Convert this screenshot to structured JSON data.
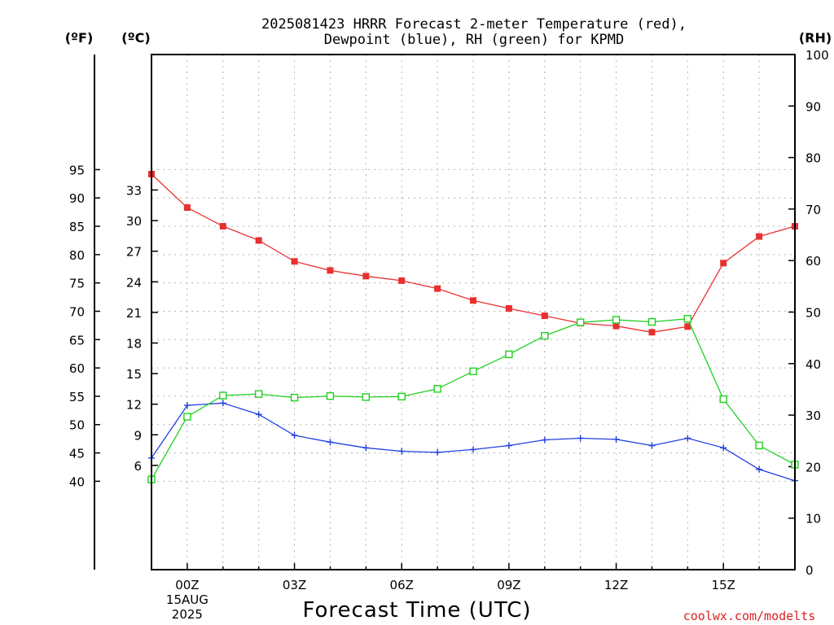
{
  "chart_data": {
    "type": "line",
    "title_line1": "2025081423 HRRR Forecast 2-meter Temperature (red),",
    "title_line2": "Dewpoint (blue), RH (green) for KPMD",
    "xlabel": "Forecast Time (UTC)",
    "credit": "coolwx.com/modelts",
    "left_outer_unit": "(ºF)",
    "left_inner_unit": "(ºC)",
    "right_unit": "(RH)",
    "x_hours": [
      -1,
      0,
      1,
      2,
      3,
      4,
      5,
      6,
      7,
      8,
      9,
      10,
      11,
      12,
      13,
      14,
      15,
      16,
      17
    ],
    "x_ticks": [
      {
        "hour": 0,
        "label": "00Z",
        "sub1": "15AUG",
        "sub2": "2025"
      },
      {
        "hour": 3,
        "label": "03Z"
      },
      {
        "hour": 6,
        "label": "06Z"
      },
      {
        "hour": 9,
        "label": "09Z"
      },
      {
        "hour": 12,
        "label": "12Z"
      },
      {
        "hour": 15,
        "label": "15Z"
      }
    ],
    "xlim": [
      -1,
      17
    ],
    "fahrenheit_ticks": [
      "40",
      "45",
      "50",
      "55",
      "60",
      "65",
      "70",
      "75",
      "80",
      "85",
      "90",
      "95"
    ],
    "celsius_ticks": [
      "6",
      "9",
      "12",
      "15",
      "18",
      "21",
      "24",
      "27",
      "30",
      "33"
    ],
    "rh_ticks": [
      "0",
      "10",
      "20",
      "30",
      "40",
      "50",
      "60",
      "70",
      "80",
      "90",
      "100"
    ],
    "ylim_rh": [
      0,
      100
    ],
    "series": [
      {
        "name": "Temperature",
        "units": "F",
        "color": "#e83030",
        "marker": "filled-square",
        "values": [
          94.2,
          88.3,
          85.0,
          82.5,
          78.8,
          77.2,
          76.2,
          75.4,
          74.0,
          71.9,
          70.5,
          69.2,
          67.9,
          67.4,
          66.3,
          67.3,
          78.5,
          83.2,
          85.0
        ]
      },
      {
        "name": "Dewpoint",
        "units": "F",
        "color": "#2040e0",
        "marker": "plus",
        "values": [
          44.1,
          53.4,
          53.8,
          51.8,
          48.1,
          46.9,
          45.9,
          45.3,
          45.1,
          45.6,
          46.3,
          47.3,
          47.6,
          47.4,
          46.3,
          47.6,
          45.9,
          42.1,
          40.1
        ]
      },
      {
        "name": "RH",
        "units": "%",
        "color": "#20d020",
        "marker": "open-square",
        "values": [
          17.5,
          29.7,
          33.8,
          34.1,
          33.4,
          33.7,
          33.5,
          33.6,
          35.1,
          38.5,
          41.8,
          45.4,
          48.0,
          48.5,
          48.1,
          48.7,
          33.1,
          24.1,
          20.4
        ]
      }
    ]
  }
}
